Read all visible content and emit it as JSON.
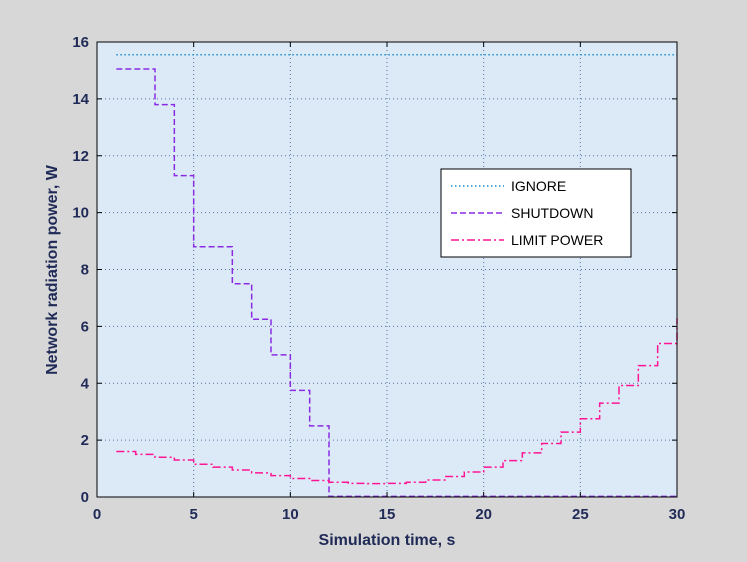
{
  "chart_data": {
    "type": "line",
    "title": "",
    "xlabel": "Simulation time, s",
    "ylabel": "Network radiation power, W",
    "xlim": [
      0,
      30
    ],
    "ylim": [
      0,
      16
    ],
    "xticks": [
      0,
      5,
      10,
      15,
      20,
      25,
      30
    ],
    "yticks": [
      0,
      2,
      4,
      6,
      8,
      10,
      12,
      14,
      16
    ],
    "grid": true,
    "legend_position": "right",
    "plot_background": "#dceaf8",
    "series": [
      {
        "name": "IGNORE",
        "color": "#1e90c8",
        "style": "dotted",
        "step": false,
        "x": [
          1,
          30
        ],
        "y": [
          15.55,
          15.55
        ]
      },
      {
        "name": "SHUTDOWN",
        "color": "#8a2be2",
        "style": "dashed",
        "step": true,
        "x": [
          1,
          3,
          4,
          5,
          6,
          7,
          8,
          9,
          10,
          11,
          12,
          13,
          30
        ],
        "y": [
          15.05,
          13.8,
          11.3,
          8.8,
          8.8,
          7.5,
          6.25,
          5.0,
          3.75,
          2.5,
          0.02,
          0.02,
          0.02
        ]
      },
      {
        "name": "LIMIT POWER",
        "color": "#ff1493",
        "style": "dashdot",
        "step": true,
        "x": [
          1,
          2,
          3,
          4,
          5,
          6,
          7,
          8,
          9,
          10,
          11,
          12,
          13,
          14,
          15,
          16,
          17,
          18,
          19,
          20,
          21,
          22,
          23,
          24,
          25,
          26,
          27,
          28,
          29,
          30
        ],
        "y": [
          1.6,
          1.5,
          1.4,
          1.3,
          1.15,
          1.05,
          0.95,
          0.85,
          0.75,
          0.65,
          0.58,
          0.52,
          0.48,
          0.47,
          0.48,
          0.52,
          0.6,
          0.72,
          0.88,
          1.05,
          1.28,
          1.55,
          1.88,
          2.28,
          2.75,
          3.3,
          3.92,
          4.62,
          5.4,
          6.28
        ]
      }
    ]
  }
}
